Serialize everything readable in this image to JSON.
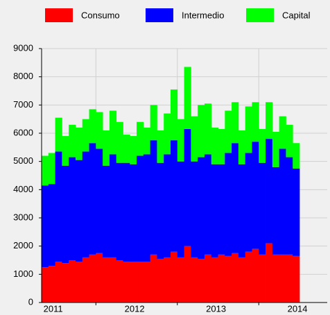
{
  "chart_data": {
    "type": "stacked_bar_step",
    "categories": [
      "2011",
      null,
      null,
      null,
      null,
      null,
      null,
      null,
      null,
      null,
      null,
      null,
      "2012",
      null,
      null,
      null,
      null,
      null,
      null,
      null,
      null,
      null,
      null,
      null,
      "2013",
      null,
      null,
      null,
      null,
      null,
      null,
      null,
      null,
      null,
      null,
      null,
      "2014",
      null
    ],
    "series": [
      {
        "name": "Consumo",
        "color": "#ff0000",
        "values": [
          1250,
          1300,
          1450,
          1400,
          1500,
          1450,
          1600,
          1700,
          1750,
          1600,
          1600,
          1500,
          1450,
          1450,
          1450,
          1450,
          1700,
          1550,
          1600,
          1800,
          1600,
          2000,
          1600,
          1550,
          1700,
          1600,
          1700,
          1650,
          1750,
          1600,
          1800,
          1900,
          1700,
          2100,
          1700,
          1700,
          1700,
          1650
        ]
      },
      {
        "name": "Intermedio",
        "color": "#0000ff",
        "values": [
          2900,
          2900,
          3900,
          3450,
          3650,
          3600,
          3750,
          3950,
          3700,
          3250,
          3650,
          3450,
          3500,
          3450,
          3750,
          3800,
          4050,
          3400,
          3650,
          3950,
          3400,
          4150,
          3400,
          3600,
          3550,
          3300,
          3200,
          3650,
          3900,
          3300,
          3500,
          3800,
          3250,
          3700,
          3100,
          3750,
          3450,
          3100
        ]
      },
      {
        "name": "Capital",
        "color": "#00ff00",
        "values": [
          1050,
          1100,
          1200,
          1050,
          1150,
          1150,
          1150,
          1200,
          1300,
          1250,
          1550,
          1450,
          1000,
          1000,
          1200,
          950,
          1250,
          1150,
          1450,
          1800,
          1500,
          2200,
          1600,
          1850,
          1800,
          1300,
          1250,
          1500,
          1450,
          1200,
          1650,
          1400,
          1200,
          1300,
          1250,
          1150,
          1150,
          900
        ]
      }
    ],
    "ylim": [
      0,
      9000
    ],
    "yticks": [
      0,
      1000,
      2000,
      3000,
      4000,
      5000,
      6000,
      7000,
      8000,
      9000
    ],
    "grid": true,
    "legend": "top"
  }
}
